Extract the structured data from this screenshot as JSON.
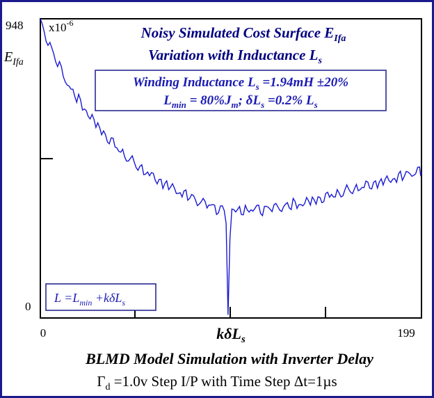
{
  "chart_data": {
    "type": "line",
    "title": "Noisy Simulated Cost Surface E_Ifa",
    "title_line1": "Noisy Simulated Cost Surface E",
    "title_line1_sub": "Ifa",
    "title_line2": "Variation with Inductance L",
    "title_line2_sub": "s",
    "ylabel": "E",
    "ylabel_sub": "Ifa",
    "y_multiplier": "x10",
    "y_multiplier_exp": "-6",
    "ylim": [
      0,
      948
    ],
    "ytick_top": "948",
    "ytick_bottom": "0",
    "xlabel": "kδL",
    "xlabel_sub": "s",
    "xlim": [
      0,
      199
    ],
    "xtick_left": "0",
    "xtick_right": "199",
    "info_box": {
      "line1_a": "Winding Inductance L",
      "line1_sub": "s",
      "line1_b": " =1.94mH ±20%",
      "line2_a": "L",
      "line2_sub1": "min",
      "line2_b": " = 80%J",
      "line2_sub2": "m",
      "line2_c": "; δL",
      "line2_sub3": "s",
      "line2_d": " =0.2% L",
      "line2_sub4": "s"
    },
    "legend_box": {
      "a": "L =L",
      "sub1": "min",
      "b": " +kδL",
      "sub2": "s"
    },
    "footer_line1": "BLMD Model Simulation with Inverter Delay",
    "footer_line2_a": "Γ",
    "footer_line2_sub": "d",
    "footer_line2_b": " =1.0v Step I/P with Time Step Δt=1µs",
    "series_color": "#1a1ad2",
    "series": [
      {
        "name": "E_Ifa",
        "x": [
          0,
          2,
          4,
          6,
          8,
          10,
          12,
          14,
          16,
          18,
          20,
          22,
          24,
          26,
          28,
          30,
          32,
          34,
          36,
          38,
          40,
          42,
          44,
          46,
          48,
          50,
          52,
          54,
          56,
          58,
          60,
          62,
          64,
          66,
          68,
          70,
          72,
          74,
          76,
          78,
          80,
          82,
          84,
          86,
          88,
          90,
          92,
          94,
          96,
          97,
          98,
          99,
          100,
          102,
          104,
          106,
          108,
          110,
          112,
          114,
          116,
          118,
          120,
          122,
          124,
          126,
          128,
          130,
          132,
          134,
          136,
          138,
          140,
          142,
          144,
          146,
          148,
          150,
          152,
          154,
          156,
          158,
          160,
          162,
          164,
          166,
          168,
          170,
          172,
          174,
          176,
          178,
          180,
          182,
          184,
          186,
          188,
          190,
          192,
          194,
          196,
          198,
          199
        ],
        "values": [
          940,
          900,
          880,
          850,
          820,
          795,
          770,
          745,
          725,
          705,
          690,
          672,
          655,
          640,
          622,
          608,
          592,
          578,
          565,
          552,
          540,
          528,
          515,
          505,
          495,
          485,
          476,
          468,
          458,
          450,
          442,
          435,
          428,
          420,
          415,
          408,
          400,
          395,
          390,
          384,
          378,
          372,
          368,
          362,
          358,
          352,
          348,
          345,
          342,
          300,
          10,
          250,
          335,
          340,
          338,
          342,
          345,
          340,
          344,
          346,
          343,
          348,
          350,
          346,
          352,
          350,
          356,
          355,
          360,
          358,
          362,
          366,
          370,
          368,
          375,
          378,
          380,
          385,
          388,
          392,
          395,
          398,
          402,
          405,
          408,
          412,
          415,
          418,
          420,
          425,
          428,
          430,
          434,
          438,
          440,
          445,
          448,
          452,
          456,
          460,
          462,
          465,
          466
        ]
      }
    ]
  }
}
